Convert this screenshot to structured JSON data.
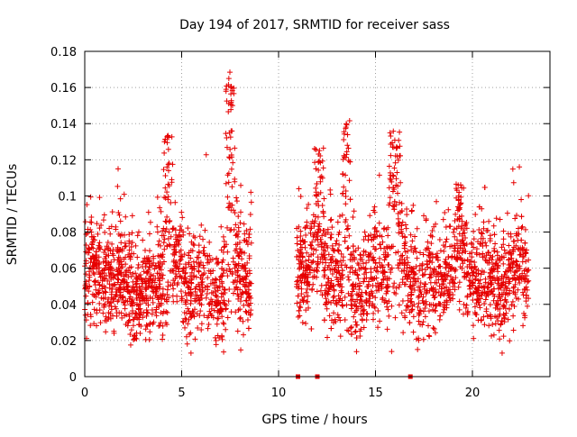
{
  "chart_data": {
    "type": "scatter",
    "title": "Day 194 of 2017, SRMTID for receiver sass",
    "xlabel": "GPS time / hours",
    "ylabel": "SRMTID / TECUs",
    "xlim": [
      0,
      24
    ],
    "ylim": [
      0,
      0.18
    ],
    "x_ticks": [
      0,
      5,
      10,
      15,
      20
    ],
    "y_ticks": [
      0,
      0.02,
      0.04,
      0.06,
      0.08,
      0.1,
      0.12,
      0.14,
      0.16,
      0.18
    ],
    "grid": true,
    "legend": "none",
    "marker": "+",
    "color": "#e60000",
    "segments": [
      {
        "start": 0.0,
        "end": 8.6,
        "median": 0.052,
        "spread": 0.014,
        "density": 150
      },
      {
        "start": 10.9,
        "end": 22.9,
        "median": 0.056,
        "spread": 0.014,
        "density": 150
      }
    ],
    "features": [
      {
        "x": 4.3,
        "width": 0.25,
        "peak": 0.134,
        "base": 0.09
      },
      {
        "x": 7.5,
        "width": 0.25,
        "peak": 0.171,
        "base": 0.1
      },
      {
        "x": 12.1,
        "width": 0.25,
        "peak": 0.128,
        "base": 0.085
      },
      {
        "x": 13.5,
        "width": 0.2,
        "peak": 0.142,
        "base": 0.09
      },
      {
        "x": 16.0,
        "width": 0.3,
        "peak": 0.136,
        "base": 0.095
      },
      {
        "x": 19.3,
        "width": 0.15,
        "peak": 0.107,
        "base": 0.085
      }
    ],
    "zero_markers": [
      11.0,
      12.0,
      16.8
    ]
  }
}
